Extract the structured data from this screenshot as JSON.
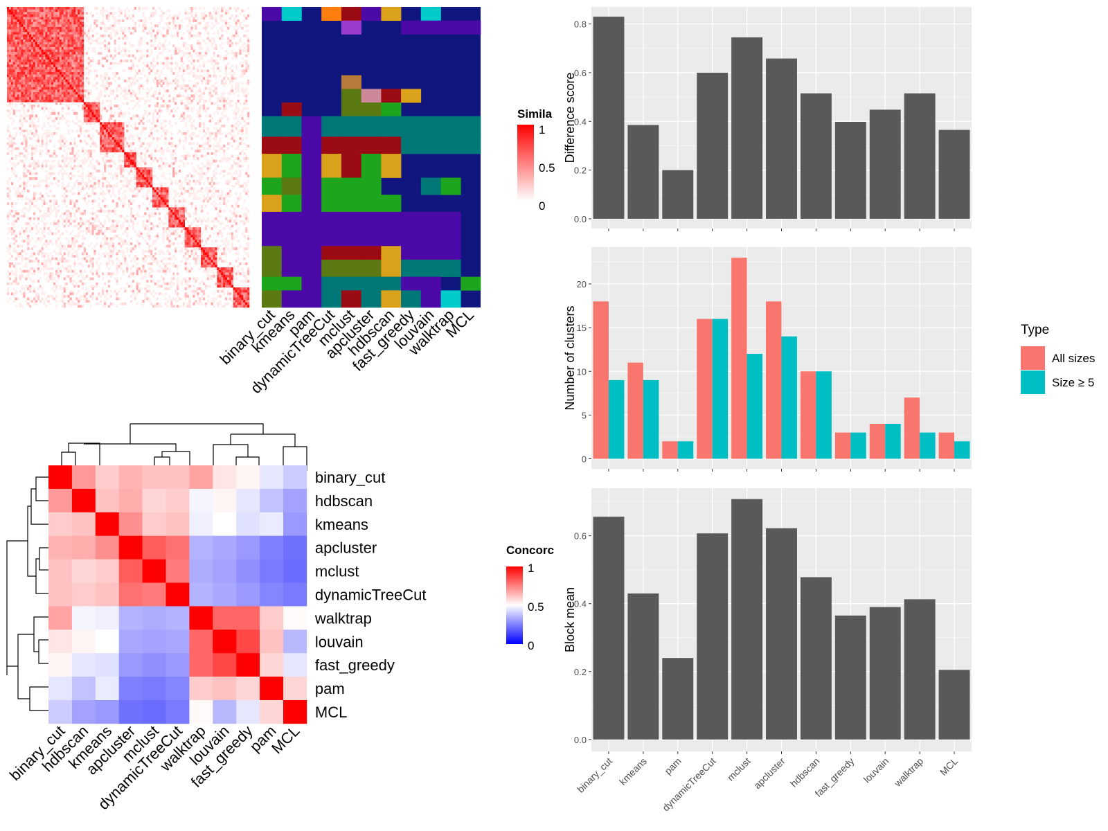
{
  "chart_data": [
    {
      "id": "similarity",
      "type": "heatmap",
      "legend_title": "Simila",
      "legend_ticks": [
        "1",
        "0.5",
        "0"
      ],
      "colors": {
        "low": "#ffffff",
        "high": "#ff0000"
      },
      "size": 120
    },
    {
      "id": "classes",
      "type": "heatmap",
      "columns": [
        "binary_cut",
        "kmeans",
        "pam",
        "dynamicTreeCut",
        "mclust",
        "apcluster",
        "hdbscan",
        "fast_greedy",
        "louvain",
        "walktrap",
        "MCL"
      ],
      "palette": [
        "#11167f",
        "#4b0aa8",
        "#007878",
        "#1ea51e",
        "#9a0b14",
        "#5c7a13",
        "#daa11a",
        "#ff7f0e",
        "#00cbcb",
        "#9b3bd0",
        "#ba7a3a",
        "#cc8899"
      ]
    },
    {
      "id": "concordance",
      "type": "heatmap",
      "legend_title": "Concorc",
      "legend_ticks": [
        "1",
        "0.5",
        "0"
      ],
      "colors": {
        "low": "#0000ff",
        "mid": "#ffffff",
        "high": "#ff0000"
      },
      "rows": [
        "binary_cut",
        "hdbscan",
        "kmeans",
        "apcluster",
        "mclust",
        "dynamicTreeCut",
        "walktrap",
        "louvain",
        "fast_greedy",
        "pam",
        "MCL"
      ],
      "values": [
        [
          1.0,
          0.7,
          0.6,
          0.65,
          0.62,
          0.62,
          0.68,
          0.55,
          0.52,
          0.45,
          0.4
        ],
        [
          0.7,
          1.0,
          0.62,
          0.66,
          0.58,
          0.6,
          0.48,
          0.52,
          0.45,
          0.38,
          0.32
        ],
        [
          0.6,
          0.62,
          1.0,
          0.72,
          0.6,
          0.62,
          0.47,
          0.5,
          0.44,
          0.46,
          0.3
        ],
        [
          0.65,
          0.66,
          0.72,
          1.0,
          0.82,
          0.78,
          0.35,
          0.33,
          0.3,
          0.25,
          0.22
        ],
        [
          0.62,
          0.58,
          0.6,
          0.82,
          1.0,
          0.76,
          0.34,
          0.32,
          0.28,
          0.24,
          0.21
        ],
        [
          0.62,
          0.6,
          0.62,
          0.78,
          0.76,
          1.0,
          0.35,
          0.33,
          0.3,
          0.26,
          0.24
        ],
        [
          0.68,
          0.48,
          0.47,
          0.35,
          0.34,
          0.35,
          1.0,
          0.8,
          0.8,
          0.6,
          0.51
        ],
        [
          0.55,
          0.52,
          0.5,
          0.33,
          0.32,
          0.33,
          0.8,
          1.0,
          0.86,
          0.62,
          0.36
        ],
        [
          0.52,
          0.45,
          0.44,
          0.3,
          0.28,
          0.3,
          0.8,
          0.86,
          1.0,
          0.58,
          0.45
        ],
        [
          0.45,
          0.38,
          0.46,
          0.25,
          0.24,
          0.26,
          0.6,
          0.62,
          0.58,
          1.0,
          0.58
        ],
        [
          0.4,
          0.32,
          0.3,
          0.22,
          0.21,
          0.24,
          0.51,
          0.36,
          0.45,
          0.58,
          1.0
        ]
      ]
    },
    {
      "id": "difference",
      "type": "bar",
      "categories": [
        "binary_cut",
        "kmeans",
        "pam",
        "dynamicTreeCut",
        "mclust",
        "apcluster",
        "hdbscan",
        "fast_greedy",
        "louvain",
        "walktrap",
        "MCL"
      ],
      "values": [
        0.83,
        0.385,
        0.2,
        0.6,
        0.745,
        0.658,
        0.515,
        0.398,
        0.448,
        0.515,
        0.365
      ],
      "ylabel": "Difference score",
      "ylim": [
        -0.04,
        0.87
      ],
      "yticks": [
        "0.0",
        "0.2",
        "0.4",
        "0.6",
        "0.8"
      ]
    },
    {
      "id": "clusters",
      "type": "bar",
      "categories": [
        "binary_cut",
        "kmeans",
        "pam",
        "dynamicTreeCut",
        "mclust",
        "apcluster",
        "hdbscan",
        "fast_greedy",
        "louvain",
        "walktrap",
        "MCL"
      ],
      "series": [
        {
          "name": "All sizes",
          "color": "#f8766d",
          "values": [
            18,
            11,
            2,
            16,
            23,
            18,
            10,
            3,
            4,
            7,
            3
          ]
        },
        {
          "name": "Size ≥ 5",
          "color": "#00bfc4",
          "values": [
            9,
            9,
            2,
            16,
            12,
            14,
            10,
            3,
            4,
            3,
            2
          ]
        }
      ],
      "ylabel": "Number of clusters",
      "ylim": [
        -1.15,
        24.2
      ],
      "yticks": [
        "0",
        "5",
        "10",
        "15",
        "20"
      ],
      "legend_title": "Type",
      "legend_position": "right"
    },
    {
      "id": "blockmean",
      "type": "bar",
      "categories": [
        "binary_cut",
        "kmeans",
        "pam",
        "dynamicTreeCut",
        "mclust",
        "apcluster",
        "hdbscan",
        "fast_greedy",
        "louvain",
        "walktrap",
        "MCL"
      ],
      "values": [
        0.656,
        0.43,
        0.24,
        0.607,
        0.708,
        0.622,
        0.478,
        0.365,
        0.39,
        0.413,
        0.205
      ],
      "ylabel": "Block mean",
      "ylim": [
        -0.035,
        0.74
      ],
      "yticks": [
        "0.0",
        "0.2",
        "0.4",
        "0.6"
      ]
    }
  ]
}
